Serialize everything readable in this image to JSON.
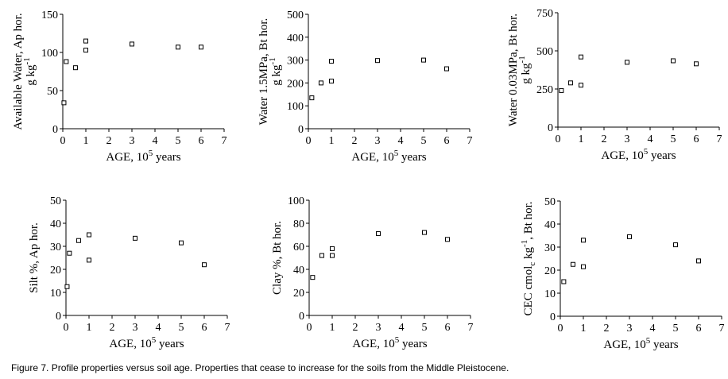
{
  "caption": "Figure 7. Profile properties versus soil age.  Properties that cease to increase for the soils from the Middle Pleistocene.",
  "chart_data": [
    {
      "type": "scatter",
      "ylabel_lines": [
        "Available Water,  Ap hor.",
        "g kg-1"
      ],
      "xlabel": "AGE, 105 years",
      "xlim": [
        0,
        7
      ],
      "ylim": [
        0,
        150
      ],
      "xticks": [
        0,
        1,
        2,
        3,
        4,
        5,
        6,
        7
      ],
      "yticks": [
        0,
        50,
        100,
        150
      ],
      "points": [
        {
          "x": 0.05,
          "y": 34
        },
        {
          "x": 0.15,
          "y": 88
        },
        {
          "x": 0.55,
          "y": 80
        },
        {
          "x": 1.0,
          "y": 103
        },
        {
          "x": 1.0,
          "y": 115
        },
        {
          "x": 3.0,
          "y": 111
        },
        {
          "x": 5.0,
          "y": 107
        },
        {
          "x": 6.0,
          "y": 107
        }
      ]
    },
    {
      "type": "scatter",
      "ylabel_lines": [
        "Water 1.5MPa,  Bt hor.",
        "g kg-1"
      ],
      "xlabel": "AGE, 105 years",
      "xlim": [
        0,
        7
      ],
      "ylim": [
        0,
        500
      ],
      "xticks": [
        0,
        1,
        2,
        3,
        4,
        5,
        6,
        7
      ],
      "yticks": [
        0,
        100,
        200,
        300,
        400,
        500
      ],
      "points": [
        {
          "x": 0.15,
          "y": 135
        },
        {
          "x": 0.55,
          "y": 200
        },
        {
          "x": 1.0,
          "y": 208
        },
        {
          "x": 1.0,
          "y": 295
        },
        {
          "x": 3.0,
          "y": 298
        },
        {
          "x": 5.0,
          "y": 300
        },
        {
          "x": 6.0,
          "y": 262
        }
      ]
    },
    {
      "type": "scatter",
      "ylabel_lines": [
        "Water  0.03MPa,  Bt hor.",
        "g kg-1"
      ],
      "xlabel": "AGE, 105 years",
      "xlim": [
        0,
        7
      ],
      "ylim": [
        0,
        750
      ],
      "xticks": [
        0,
        1,
        2,
        3,
        4,
        5,
        6,
        7
      ],
      "yticks": [
        0,
        250,
        500,
        750
      ],
      "points": [
        {
          "x": 0.15,
          "y": 240
        },
        {
          "x": 0.55,
          "y": 290
        },
        {
          "x": 1.0,
          "y": 275
        },
        {
          "x": 1.0,
          "y": 460
        },
        {
          "x": 3.0,
          "y": 425
        },
        {
          "x": 5.0,
          "y": 435
        },
        {
          "x": 6.0,
          "y": 415
        }
      ]
    },
    {
      "type": "scatter",
      "ylabel_lines": [
        "Silt %,  Ap hor."
      ],
      "xlabel": "AGE, 105 years",
      "xlim": [
        0,
        7
      ],
      "ylim": [
        0,
        50
      ],
      "xticks": [
        0,
        1,
        2,
        3,
        4,
        5,
        6,
        7
      ],
      "yticks": [
        0,
        10,
        20,
        30,
        40,
        50
      ],
      "points": [
        {
          "x": 0.05,
          "y": 12.5
        },
        {
          "x": 0.15,
          "y": 27
        },
        {
          "x": 0.55,
          "y": 32.5
        },
        {
          "x": 1.0,
          "y": 24
        },
        {
          "x": 1.0,
          "y": 35
        },
        {
          "x": 3.0,
          "y": 33.5
        },
        {
          "x": 5.0,
          "y": 31.5
        },
        {
          "x": 6.0,
          "y": 22
        }
      ]
    },
    {
      "type": "scatter",
      "ylabel_lines": [
        "Clay %,  Bt hor."
      ],
      "xlabel": "AGE, 105 years",
      "xlim": [
        0,
        7
      ],
      "ylim": [
        0,
        100
      ],
      "xticks": [
        0,
        1,
        2,
        3,
        4,
        5,
        6,
        7
      ],
      "yticks": [
        0,
        20,
        40,
        60,
        80,
        100
      ],
      "points": [
        {
          "x": 0.15,
          "y": 33
        },
        {
          "x": 0.55,
          "y": 52
        },
        {
          "x": 1.0,
          "y": 52
        },
        {
          "x": 1.0,
          "y": 58
        },
        {
          "x": 3.0,
          "y": 71
        },
        {
          "x": 5.0,
          "y": 72
        },
        {
          "x": 6.0,
          "y": 66
        }
      ]
    },
    {
      "type": "scatter",
      "ylabel_lines": [
        "CEC cmolc kg-1,  Bt hor."
      ],
      "xlabel": "AGE, 105 years",
      "xlim": [
        0,
        7
      ],
      "ylim": [
        0,
        50
      ],
      "xticks": [
        0,
        1,
        2,
        3,
        4,
        5,
        6,
        7
      ],
      "yticks": [
        0,
        10,
        20,
        30,
        40,
        50
      ],
      "points": [
        {
          "x": 0.15,
          "y": 15
        },
        {
          "x": 0.55,
          "y": 22.5
        },
        {
          "x": 1.0,
          "y": 21.5
        },
        {
          "x": 1.0,
          "y": 33
        },
        {
          "x": 3.0,
          "y": 34.5
        },
        {
          "x": 5.0,
          "y": 31
        },
        {
          "x": 6.0,
          "y": 24
        }
      ]
    }
  ]
}
